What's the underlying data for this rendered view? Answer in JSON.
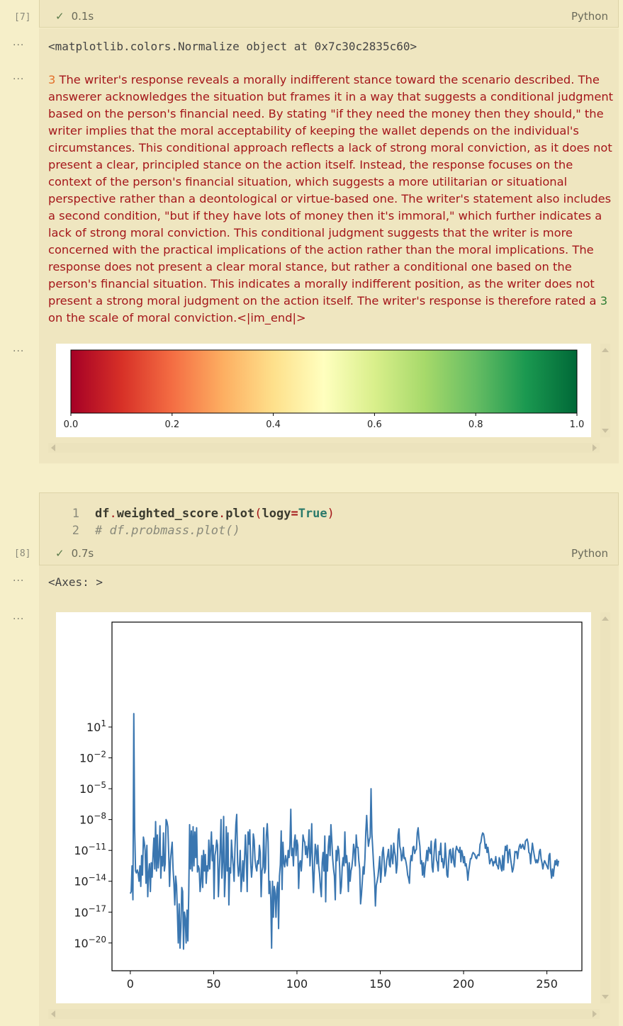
{
  "cell7": {
    "exec_count": "[7]",
    "status_time": "0.1s",
    "language": "Python"
  },
  "output1": {
    "dots": "···",
    "text": "<matplotlib.colors.Normalize object at 0x7c30c2835c60>"
  },
  "output2": {
    "dots": "···",
    "lead_number": "3",
    "body": " The writer's response reveals a morally indifferent stance toward the scenario described. The answerer acknowledges the situation but frames it in a way that suggests a conditional judgment based on the person's financial need. By stating \"if they need the money then they should,\" the writer implies that the moral acceptability of keeping the wallet depends on the individual's circumstances. This conditional approach reflects a lack of strong moral conviction, as it does not present a clear, principled stance on the action itself. Instead, the response focuses on the context of the person's financial situation, which suggests a more utilitarian or situational perspective rather than a deontological or virtue-based one. The writer's statement also includes a second condition, \"but if they have lots of money then it's immoral,\" which further indicates a lack of strong moral conviction. This conditional judgment suggests that the writer is more concerned with the practical implications of the action rather than the moral implications. The response does not present a clear moral stance, but rather a conditional one based on the person's financial situation. This indicates a morally indifferent position, as the writer does not present a strong moral judgment on the action itself. The writer's response is therefore rated a ",
    "rating_number": "3",
    "tail": " on the scale of moral conviction.<|im_end|>"
  },
  "output3": {
    "dots": "···",
    "colorbar": {
      "tick_labels": [
        "0.0",
        "0.2",
        "0.4",
        "0.6",
        "0.8",
        "1.0"
      ],
      "colors": [
        "#a50026",
        "#d73027",
        "#f46d43",
        "#fdae61",
        "#fee08b",
        "#ffffbf",
        "#d9ef8b",
        "#a6d96a",
        "#66bd63",
        "#1a9850",
        "#006837"
      ]
    }
  },
  "cell8": {
    "exec_count": "[8]",
    "code_lines": [
      {
        "num": "1",
        "obj": "df",
        "dot1": ".",
        "attr": "weighted_score",
        "dot2": ".",
        "fn": "plot",
        "open": "(",
        "arg": "logy",
        "eq": "=",
        "val": "True",
        "close": ")"
      },
      {
        "num": "2",
        "comment": "# df.probmass.plot()"
      }
    ],
    "status_time": "0.7s",
    "language": "Python"
  },
  "output4": {
    "dots": "···",
    "text": "<Axes: >"
  },
  "output5": {
    "dots": "···"
  },
  "chart_data": {
    "type": "line",
    "title": "",
    "xlabel": "",
    "ylabel": "",
    "yscale": "log",
    "xlim": [
      -11,
      271
    ],
    "ylim_exponent": [
      -22.7,
      11.2
    ],
    "x_ticks": [
      0,
      50,
      100,
      150,
      200,
      250
    ],
    "y_ticks": [
      {
        "base": "10",
        "exp": "1"
      },
      {
        "base": "10",
        "exp": "−2"
      },
      {
        "base": "10",
        "exp": "−5"
      },
      {
        "base": "10",
        "exp": "−8"
      },
      {
        "base": "10",
        "exp": "−11"
      },
      {
        "base": "10",
        "exp": "−14"
      },
      {
        "base": "10",
        "exp": "−17"
      },
      {
        "base": "10",
        "exp": "−20"
      }
    ],
    "y_tick_values_exponent": [
      1,
      -2,
      -5,
      -8,
      -11,
      -14,
      -17,
      -20
    ],
    "series_color": "#3a76b0",
    "series": [
      {
        "values_exponent": [
          -15.2,
          -15.0,
          -12.5,
          -15.8,
          2.3,
          -9.0,
          -13.0,
          -13.2,
          -12.9,
          -13.2,
          -14.0,
          -12.5,
          -14.5,
          -11.5,
          -13.4,
          -9.7,
          -10.2,
          -11.0,
          -14.2,
          -10.5,
          -15.5,
          -13.2,
          -12.3,
          -15.0,
          -12.2,
          -13.6,
          -11.5,
          -9.8,
          -12.8,
          -8.2,
          -13.0,
          -9.5,
          -12.7,
          -11.5,
          -8.6,
          -13.7,
          -11.6,
          -12.5,
          -9.3,
          -13.0,
          -12.3,
          -8.0,
          -8.2,
          -8.7,
          -11.2,
          -14.5,
          -12.0,
          -11.0,
          -10.2,
          -12.8,
          -14.2,
          -16.3,
          -13.5,
          -14.4,
          -17.1,
          -20.0,
          -16.2,
          -20.5,
          -18.5,
          -14.6,
          -15.0,
          -20.6,
          -17.0,
          -17.6,
          -20.0,
          -16.8,
          -19.8,
          -15.2,
          -8.5,
          -12.8,
          -9.1,
          -13.0,
          -8.7,
          -12.5,
          -9.2,
          -11.7,
          -8.8,
          -13.1,
          -12.5,
          -12.8,
          -15.0,
          -14.0,
          -11.5,
          -14.6,
          -11.0,
          -13.0,
          -11.4,
          -14.2,
          -12.5,
          -13.0,
          -10.0,
          -12.8,
          -11.0,
          -9.2,
          -12.0,
          -10.5,
          -15.7,
          -11.5,
          -11.0,
          -10.0,
          -10.5,
          -15.5,
          -13.2,
          -11.0,
          -8.0,
          -13.7,
          -12.0,
          -7.7,
          -15.5,
          -13.5,
          -8.7,
          -13.0,
          -9.3,
          -16.3,
          -12.7,
          -13.2,
          -10.0,
          -11.5,
          -12.5,
          -14.0,
          -10.8,
          -8.5,
          -7.5,
          -12.2,
          -13.5,
          -12.8,
          -11.0,
          -15.0,
          -13.7,
          -12.0,
          -14.0,
          -11.8,
          -9.5,
          -11.7,
          -15.0,
          -9.2,
          -10.4,
          -9.0,
          -12.2,
          -13.6,
          -12.5,
          -9.4,
          -10.0,
          -11.9,
          -12.6,
          -13.0,
          -12.0,
          -12.3,
          -10.5,
          -11.2,
          -15.5,
          -13.0,
          -12.6,
          -8.8,
          -13.2,
          -12.8,
          -9.5,
          -8.4,
          -10.2,
          -15.2,
          -14.0,
          -15.6,
          -20.5,
          -14.0,
          -17.5,
          -14.5,
          -15.2,
          -17.5,
          -14.8,
          -14.1,
          -18.6,
          -13.5,
          -12.4,
          -9.1,
          -14.8,
          -10.2,
          -12.2,
          -12.6,
          -11.5,
          -12.0,
          -12.5,
          -11.0,
          -11.7,
          -10.5,
          -7.0,
          -11.5,
          -10.8,
          -12.5,
          -10.2,
          -9.5,
          -11.5,
          -10.0,
          -10.5,
          -14.7,
          -12.3,
          -12.0,
          -13.0,
          -11.8,
          -9.5,
          -10.0,
          -10.2,
          -11.4,
          -10.6,
          -11.7,
          -10.7,
          -9.0,
          -12.5,
          -11.2,
          -8.4,
          -12.8,
          -15.1,
          -12.7,
          -10.4,
          -11.0,
          -12.3,
          -10.5,
          -12.5,
          -13.3,
          -14.6,
          -15.5,
          -12.2,
          -11.2,
          -13.0,
          -9.6,
          -16.0,
          -11.4,
          -13.0,
          -10.6,
          -9.6,
          -11.5,
          -8.5,
          -10.0,
          -11.8,
          -12.8,
          -13.5,
          -15.8,
          -11.0,
          -12.0,
          -10.6,
          -11.0,
          -12.6,
          -15.2,
          -14.5,
          -12.5,
          -11.7,
          -12.5,
          -9.2,
          -12.2,
          -11.5,
          -12.5,
          -15.0,
          -12.2,
          -14.0,
          -13.0,
          -12.6,
          -11.8,
          -10.4,
          -11.0,
          -12.5,
          -9.5,
          -10.7,
          -10.7,
          -12.0,
          -12.8,
          -16.2,
          -15.3,
          -14.0,
          -12.6,
          -13.3,
          -11.8,
          -9.2,
          -7.6,
          -9.4,
          -10.6,
          -10.0,
          -9.7,
          -5.0,
          -9.4,
          -10.9,
          -12.5,
          -13.7,
          -16.4,
          -14.4,
          -14.0,
          -13.5,
          -12.6,
          -11.6,
          -14.1,
          -13.0,
          -11.2,
          -10.7,
          -12.0,
          -13.5,
          -13.0,
          -12.0,
          -11.5,
          -10.9,
          -12.4,
          -12.6,
          -10.5,
          -11.7,
          -12.3,
          -10.3,
          -11.1,
          -11.6,
          -13.2,
          -12.4,
          -9.5,
          -8.9,
          -10.6,
          -11.0,
          -12.0,
          -11.6,
          -10.7,
          -11.8,
          -11.7,
          -12.1,
          -12.6,
          -13.4,
          -13.7,
          -14.2,
          -12.2,
          -11.5,
          -12.0,
          -10.7,
          -10.6,
          -11.3,
          -11.0,
          -10.9,
          -9.3,
          -8.8,
          -9.9,
          -10.6,
          -12.3,
          -12.0,
          -13.4,
          -12.2,
          -13.6,
          -12.6,
          -11.9,
          -11.0,
          -12.0,
          -10.7,
          -11.0,
          -11.3,
          -10.1,
          -12.6,
          -13.1,
          -11.7,
          -10.3,
          -9.9,
          -11.9,
          -12.2,
          -13.0,
          -11.1,
          -11.4,
          -10.3,
          -12.1,
          -11.8,
          -12.7,
          -12.3,
          -10.3,
          -11.7,
          -13.4,
          -13.6,
          -12.0,
          -11.0,
          -10.9,
          -12.2,
          -11.7,
          -10.8,
          -12.3,
          -12.6,
          -11.1,
          -10.6,
          -10.9,
          -11.0,
          -11.2,
          -10.7,
          -12.1,
          -11.0,
          -11.4,
          -12.2,
          -11.6,
          -12.5,
          -12.3,
          -12.9,
          -13.9,
          -13.0,
          -12.4,
          -11.8,
          -11.8,
          -11.4,
          -11.2,
          -11.3,
          -11.4,
          -11.7,
          -11.8,
          -11.5,
          -11.4,
          -11.5,
          -10.4,
          -10.2,
          -9.6,
          -9.3,
          -9.4,
          -9.9,
          -10.8,
          -10.4,
          -11.2,
          -10.7,
          -11.4,
          -12.3,
          -12.0,
          -11.8,
          -12.0,
          -12.5,
          -12.1,
          -12.2,
          -11.6,
          -12.4,
          -12.5,
          -12.8,
          -11.7,
          -12.0,
          -12.7,
          -13.0,
          -11.5,
          -12.9,
          -11.6,
          -10.6,
          -11.0,
          -10.5,
          -12.2,
          -11.2,
          -10.9,
          -11.8,
          -12.4,
          -13.1,
          -12.8,
          -12.2,
          -11.1,
          -11.2,
          -11.1,
          -11.8,
          -11.1,
          -10.6,
          -10.4,
          -10.8,
          -10.6,
          -10.4,
          -10.8,
          -10.9,
          -10.1,
          -10.0,
          -9.9,
          -10.3,
          -11.2,
          -11.3,
          -12.3,
          -11.2,
          -10.3,
          -10.9,
          -11.4,
          -11.9,
          -12.2,
          -11.9,
          -12.2,
          -11.9,
          -11.1,
          -10.9,
          -11.8,
          -12.2,
          -12.8,
          -12.3,
          -12.0,
          -12.2,
          -12.4,
          -12.6,
          -12.8,
          -11.5,
          -11.3,
          -12.9,
          -13.7,
          -12.8,
          -13.5,
          -12.7,
          -12.0,
          -12.4,
          -11.9,
          -12.5,
          -12.0
        ]
      }
    ]
  }
}
